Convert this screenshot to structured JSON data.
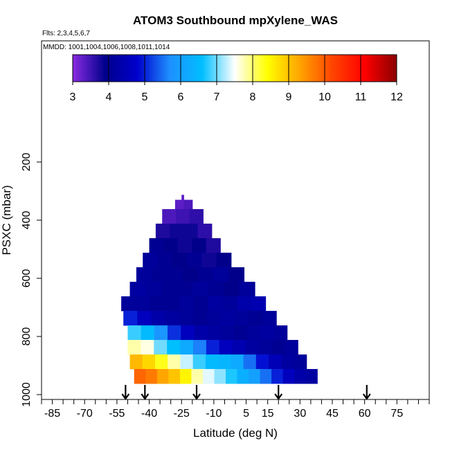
{
  "chart_data": {
    "type": "heatmap",
    "title": "ATOM3 Southbound mpXylene_WAS",
    "flights_note": "Flts: 2,3,4,5,6,7",
    "dates_note": "MMDD: 1001,1004,1006,1008,1011,1014",
    "xlabel": "Latitude (deg N)",
    "ylabel": "PSXC (mbar)",
    "xlim": [
      -90,
      90
    ],
    "ylim": [
      1000,
      100
    ],
    "x_ticks": [
      -85,
      -70,
      -55,
      -40,
      -25,
      -10,
      5,
      15,
      30,
      45,
      60,
      75
    ],
    "y_ticks": [
      200,
      400,
      600,
      800,
      1000
    ],
    "colorbar": {
      "min": 3,
      "max": 12,
      "ticks": [
        3,
        4,
        5,
        6,
        7,
        8,
        9,
        10,
        11,
        12
      ],
      "colors": [
        "#8a2be2",
        "#00008b",
        "#0000cd",
        "#1e90ff",
        "#00bfff",
        "#ffffff",
        "#ffff00",
        "#ffa500",
        "#ff4500",
        "#ff0000",
        "#8b0000"
      ]
    },
    "marker_latitudes": [
      -51,
      -42,
      -18,
      20,
      61
    ],
    "rows": [
      {
        "p_top": 313,
        "p_bot": 330,
        "x0": -25,
        "x1": -24,
        "cells": [
          3.3
        ]
      },
      {
        "p_top": 330,
        "p_bot": 362,
        "x0": -28,
        "x1": -20,
        "cells": [
          3.3,
          3.4
        ]
      },
      {
        "p_top": 362,
        "p_bot": 412,
        "x0": -34,
        "x1": -15,
        "cells": [
          3.4,
          3.5,
          3.6
        ]
      },
      {
        "p_top": 412,
        "p_bot": 462,
        "x0": -37,
        "x1": -11,
        "cells": [
          3.7,
          3.8,
          3.8,
          3.6
        ]
      },
      {
        "p_top": 462,
        "p_bot": 512,
        "x0": -40,
        "x1": -7,
        "cells": [
          4.0,
          3.9,
          3.8,
          3.9,
          3.7
        ]
      },
      {
        "p_top": 512,
        "p_bot": 562,
        "x0": -43,
        "x1": -2,
        "cells": [
          4.1,
          4.0,
          3.9,
          4.0,
          3.8,
          3.9
        ]
      },
      {
        "p_top": 562,
        "p_bot": 612,
        "x0": -46,
        "x1": 4,
        "cells": [
          4.1,
          4.0,
          4.0,
          3.9,
          4.0,
          4.1,
          3.9
        ]
      },
      {
        "p_top": 612,
        "p_bot": 662,
        "x0": -49,
        "x1": 9,
        "cells": [
          4.2,
          4.1,
          4.0,
          4.0,
          4.1,
          4.0,
          3.9,
          4.1
        ]
      },
      {
        "p_top": 662,
        "p_bot": 712,
        "x0": -53,
        "x1": 14,
        "cells": [
          4.1,
          4.1,
          4.0,
          4.0,
          4.1,
          4.0,
          4.2,
          4.1,
          4.3,
          4.4
        ]
      },
      {
        "p_top": 712,
        "p_bot": 762,
        "x0": -52,
        "x1": 19,
        "cells": [
          5.0,
          4.6,
          4.3,
          4.2,
          4.1,
          4.0,
          4.1,
          4.2,
          4.1,
          4.0,
          4.1
        ]
      },
      {
        "p_top": 762,
        "p_bot": 812,
        "x0": -50,
        "x1": 24,
        "cells": [
          6.8,
          6.5,
          5.8,
          5.1,
          4.6,
          4.3,
          4.2,
          4.1,
          4.0,
          4.1,
          4.2,
          4.1
        ]
      },
      {
        "p_top": 812,
        "p_bot": 862,
        "x0": -50,
        "x1": 29,
        "cells": [
          7.8,
          7.6,
          7.0,
          6.6,
          6.2,
          5.6,
          5.0,
          4.6,
          4.4,
          4.2,
          4.1,
          4.0,
          4.1
        ]
      },
      {
        "p_top": 862,
        "p_bot": 912,
        "x0": -49,
        "x1": 33,
        "cells": [
          9.1,
          8.8,
          8.3,
          7.8,
          7.3,
          6.8,
          6.5,
          6.4,
          6.2,
          5.5,
          4.9,
          4.5,
          4.2,
          4.1
        ]
      },
      {
        "p_top": 912,
        "p_bot": 962,
        "x0": -47,
        "x1": 38,
        "cells": [
          9.9,
          9.7,
          9.3,
          9.0,
          8.5,
          7.8,
          7.4,
          7.1,
          6.7,
          6.3,
          6.0,
          5.5,
          5.0,
          4.6,
          4.3,
          4.2
        ]
      }
    ]
  }
}
